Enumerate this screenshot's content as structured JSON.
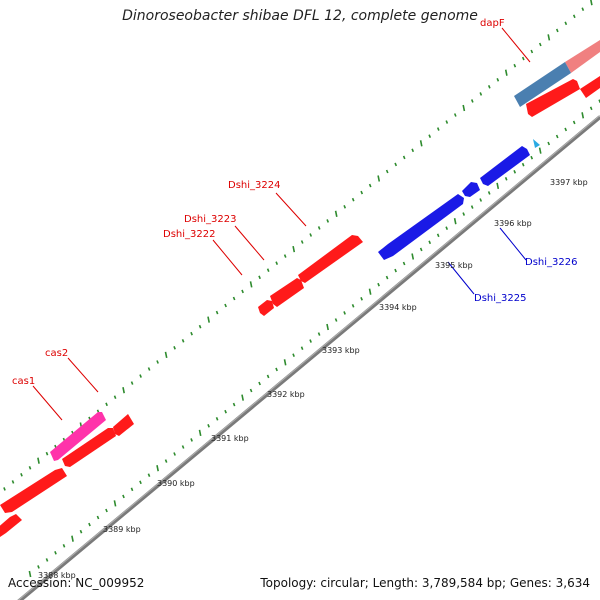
{
  "title": "Dinoroseobacter shibae DFL 12, complete genome",
  "accession": "Accession: NC_009952",
  "topology": "Topology: circular; Length: 3,789,584 bp; Genes: 3,634",
  "colors": {
    "forward_gene": "#ff1a1a",
    "reverse_gene": "#1a1ae6",
    "cas_gene": "#ff33aa",
    "pale_gene": "#f08080",
    "steel_gene": "#4a7fb0",
    "tick": "#2e8b2e",
    "backbone": "#7a7a7a",
    "label_red": "#dd0000",
    "label_blue": "#0000cc",
    "marker": "#29aae3"
  },
  "scale_labels": [
    {
      "kbp": 3388,
      "text": "3388 kbp"
    },
    {
      "kbp": 3389,
      "text": "3389 kbp"
    },
    {
      "kbp": 3390,
      "text": "3390 kbp"
    },
    {
      "kbp": 3391,
      "text": "3391 kbp"
    },
    {
      "kbp": 3392,
      "text": "3392 kbp"
    },
    {
      "kbp": 3393,
      "text": "3393 kbp"
    },
    {
      "kbp": 3394,
      "text": "3394 kbp"
    },
    {
      "kbp": 3395,
      "text": "3395 kbp"
    },
    {
      "kbp": 3396,
      "text": "3396 kbp"
    },
    {
      "kbp": 3397,
      "text": "3397 kbp"
    }
  ],
  "gene_labels": [
    {
      "text": "dapF",
      "color": "red"
    },
    {
      "text": "Dshi_3224",
      "color": "red"
    },
    {
      "text": "Dshi_3223",
      "color": "red"
    },
    {
      "text": "Dshi_3222",
      "color": "red"
    },
    {
      "text": "cas2",
      "color": "red"
    },
    {
      "text": "cas1",
      "color": "red"
    },
    {
      "text": "Dshi_3226",
      "color": "blue"
    },
    {
      "text": "Dshi_3225",
      "color": "blue"
    }
  ]
}
